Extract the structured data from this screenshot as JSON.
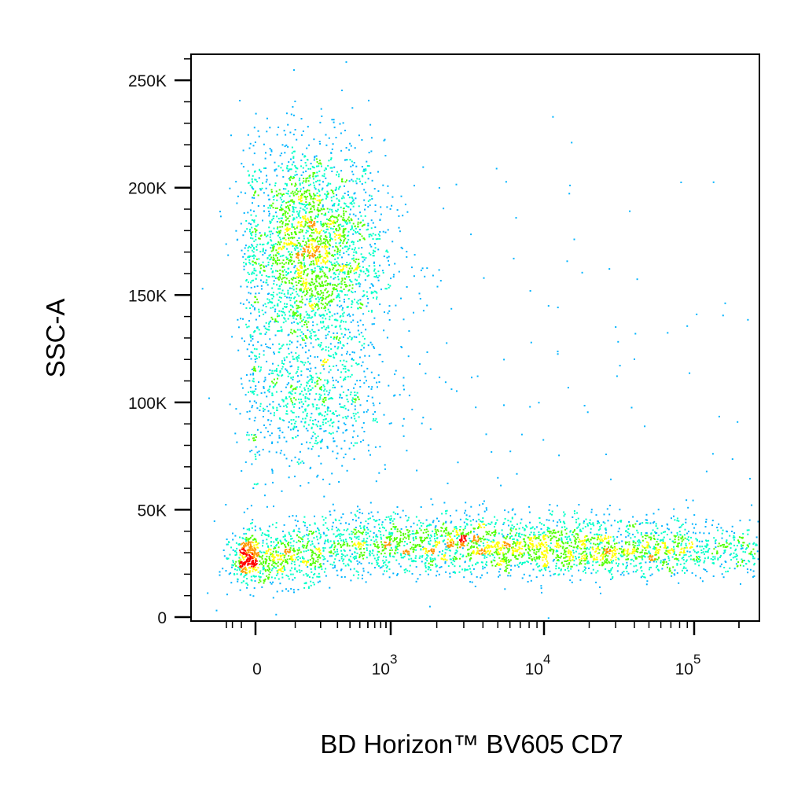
{
  "chart_data": {
    "type": "scatter",
    "xlabel": "BD Horizon™ BV605 CD7",
    "ylabel": "SSC-A",
    "x_scale": "biexponential",
    "y_scale": "linear",
    "ylim": [
      0,
      262144
    ],
    "y_ticks": [
      {
        "value": 0,
        "label": "0"
      },
      {
        "value": 50000,
        "label": "50K"
      },
      {
        "value": 100000,
        "label": "100K"
      },
      {
        "value": 150000,
        "label": "150K"
      },
      {
        "value": 200000,
        "label": "200K"
      },
      {
        "value": 250000,
        "label": "250K"
      }
    ],
    "x_ticks": [
      {
        "value": 0,
        "base": "0",
        "exp": ""
      },
      {
        "value": 1000,
        "base": "10",
        "exp": "3"
      },
      {
        "value": 10000,
        "base": "10",
        "exp": "4"
      },
      {
        "value": 100000,
        "base": "10",
        "exp": "5"
      }
    ],
    "grid": false,
    "legend": "none",
    "color_map": [
      "#0000ff",
      "#00b4ff",
      "#00ffc8",
      "#50ff00",
      "#ffff00",
      "#ff9600",
      "#ff0000"
    ],
    "populations": [
      {
        "x_center": 150,
        "x_spread": 0.35,
        "y_center": 170000,
        "y_spread": 26000,
        "count": 2600,
        "density": "high"
      },
      {
        "x_center": 150,
        "x_spread": 0.4,
        "y_center": 100000,
        "y_spread": 16000,
        "count": 700,
        "density": "medium"
      },
      {
        "x_center": 20,
        "x_spread": 0.5,
        "y_center": 27000,
        "y_spread": 6000,
        "count": 700,
        "density": "high"
      },
      {
        "x_center": 20000,
        "x_spread": 0.3,
        "y_center": 30000,
        "y_spread": 5500,
        "count": 1700,
        "density": "high"
      },
      {
        "x_center": 5000,
        "x_spread": 0.35,
        "y_center": 37000,
        "y_spread": 6500,
        "count": 1100,
        "density": "medium"
      },
      {
        "x_center": 1000,
        "x_spread": 0.35,
        "y_center": 38000,
        "y_spread": 7000,
        "count": 300,
        "density": "low"
      },
      {
        "x_center": 2000,
        "x_spread": 0.8,
        "y_center": 110000,
        "y_spread": 60000,
        "count": 220,
        "density": "low"
      }
    ]
  }
}
